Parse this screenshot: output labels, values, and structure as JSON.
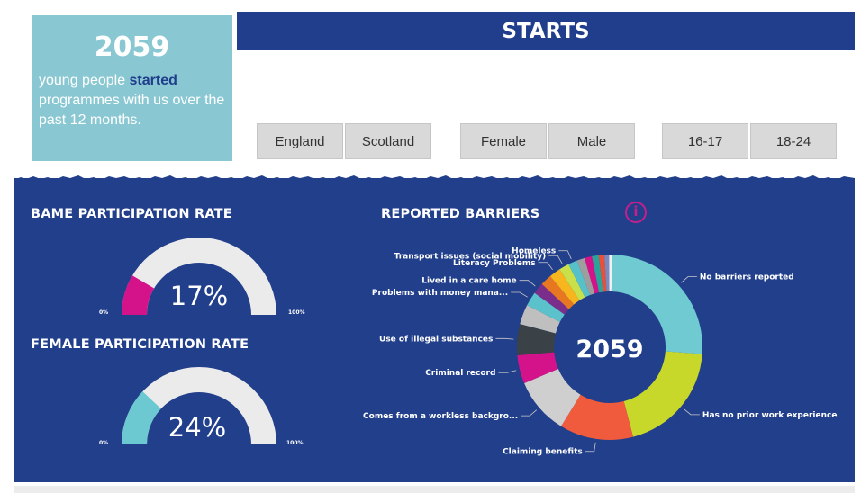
{
  "summary": {
    "count": "2059",
    "text_prefix": "young people ",
    "text_highlight": "started",
    "text_suffix": " programmes with us over the past 12 months."
  },
  "header": {
    "title": "STARTS"
  },
  "slicers": {
    "region": [
      "England",
      "Scotland"
    ],
    "gender": [
      "Female",
      "Male"
    ],
    "age": [
      "16-17",
      "18-24"
    ]
  },
  "bame": {
    "title": "BAME PARTICIPATION RATE",
    "value_label": "17%",
    "value": 0.17,
    "min_label": "0%",
    "max_label": "100%"
  },
  "female": {
    "title": "FEMALE PARTICIPATION RATE",
    "value_label": "24%",
    "value": 0.24,
    "min_label": "0%",
    "max_label": "100%"
  },
  "barriers": {
    "title": "REPORTED BARRIERS",
    "info_icon": "info-icon"
  },
  "colors": {
    "bame_fill": "#d4138b",
    "female_fill": "#6cc9d1",
    "gauge_track": "#ebebeb",
    "panel": "#223f8b"
  },
  "chart_data": {
    "type": "pie",
    "variant": "donut",
    "title": "REPORTED BARRIERS",
    "center_label": "2059",
    "slices": [
      {
        "label": "No barriers reported",
        "value": 26,
        "color": "#6fcad1"
      },
      {
        "label": "Has no prior work experience",
        "value": 20,
        "color": "#c8d82b"
      },
      {
        "label": "Claiming benefits",
        "value": 13,
        "color": "#f15b3d"
      },
      {
        "label": "Comes from a workless backgro...",
        "value": 10,
        "color": "#cfcfcf"
      },
      {
        "label": "Criminal record",
        "value": 5,
        "color": "#d4138b"
      },
      {
        "label": "Use of illegal substances",
        "value": 5.5,
        "color": "#3a4147"
      },
      {
        "label": "",
        "value": 3.5,
        "color": "#bfbfbf"
      },
      {
        "label": "Problems with money mana...",
        "value": 2.5,
        "color": "#5bc1cb"
      },
      {
        "label": "Lived in a care home",
        "value": 2,
        "color": "#7b2d8b"
      },
      {
        "label": "",
        "value": 2,
        "color": "#e87722"
      },
      {
        "label": "Literacy Problems",
        "value": 2,
        "color": "#f7b51e"
      },
      {
        "label": "Transport issues (social mobility)",
        "value": 1.8,
        "color": "#c9e04a"
      },
      {
        "label": "Homeless",
        "value": 1.6,
        "color": "#56c1c9"
      },
      {
        "label": "",
        "value": 1.4,
        "color": "#9e9e9e"
      },
      {
        "label": "",
        "value": 1.3,
        "color": "#d4138b"
      },
      {
        "label": "",
        "value": 1.2,
        "color": "#2ca39a"
      },
      {
        "label": "",
        "value": 1.0,
        "color": "#e8503a"
      },
      {
        "label": "",
        "value": 0.8,
        "color": "#7a8ac0"
      },
      {
        "label": "",
        "value": 0.6,
        "color": "#f0f0f0"
      }
    ]
  }
}
